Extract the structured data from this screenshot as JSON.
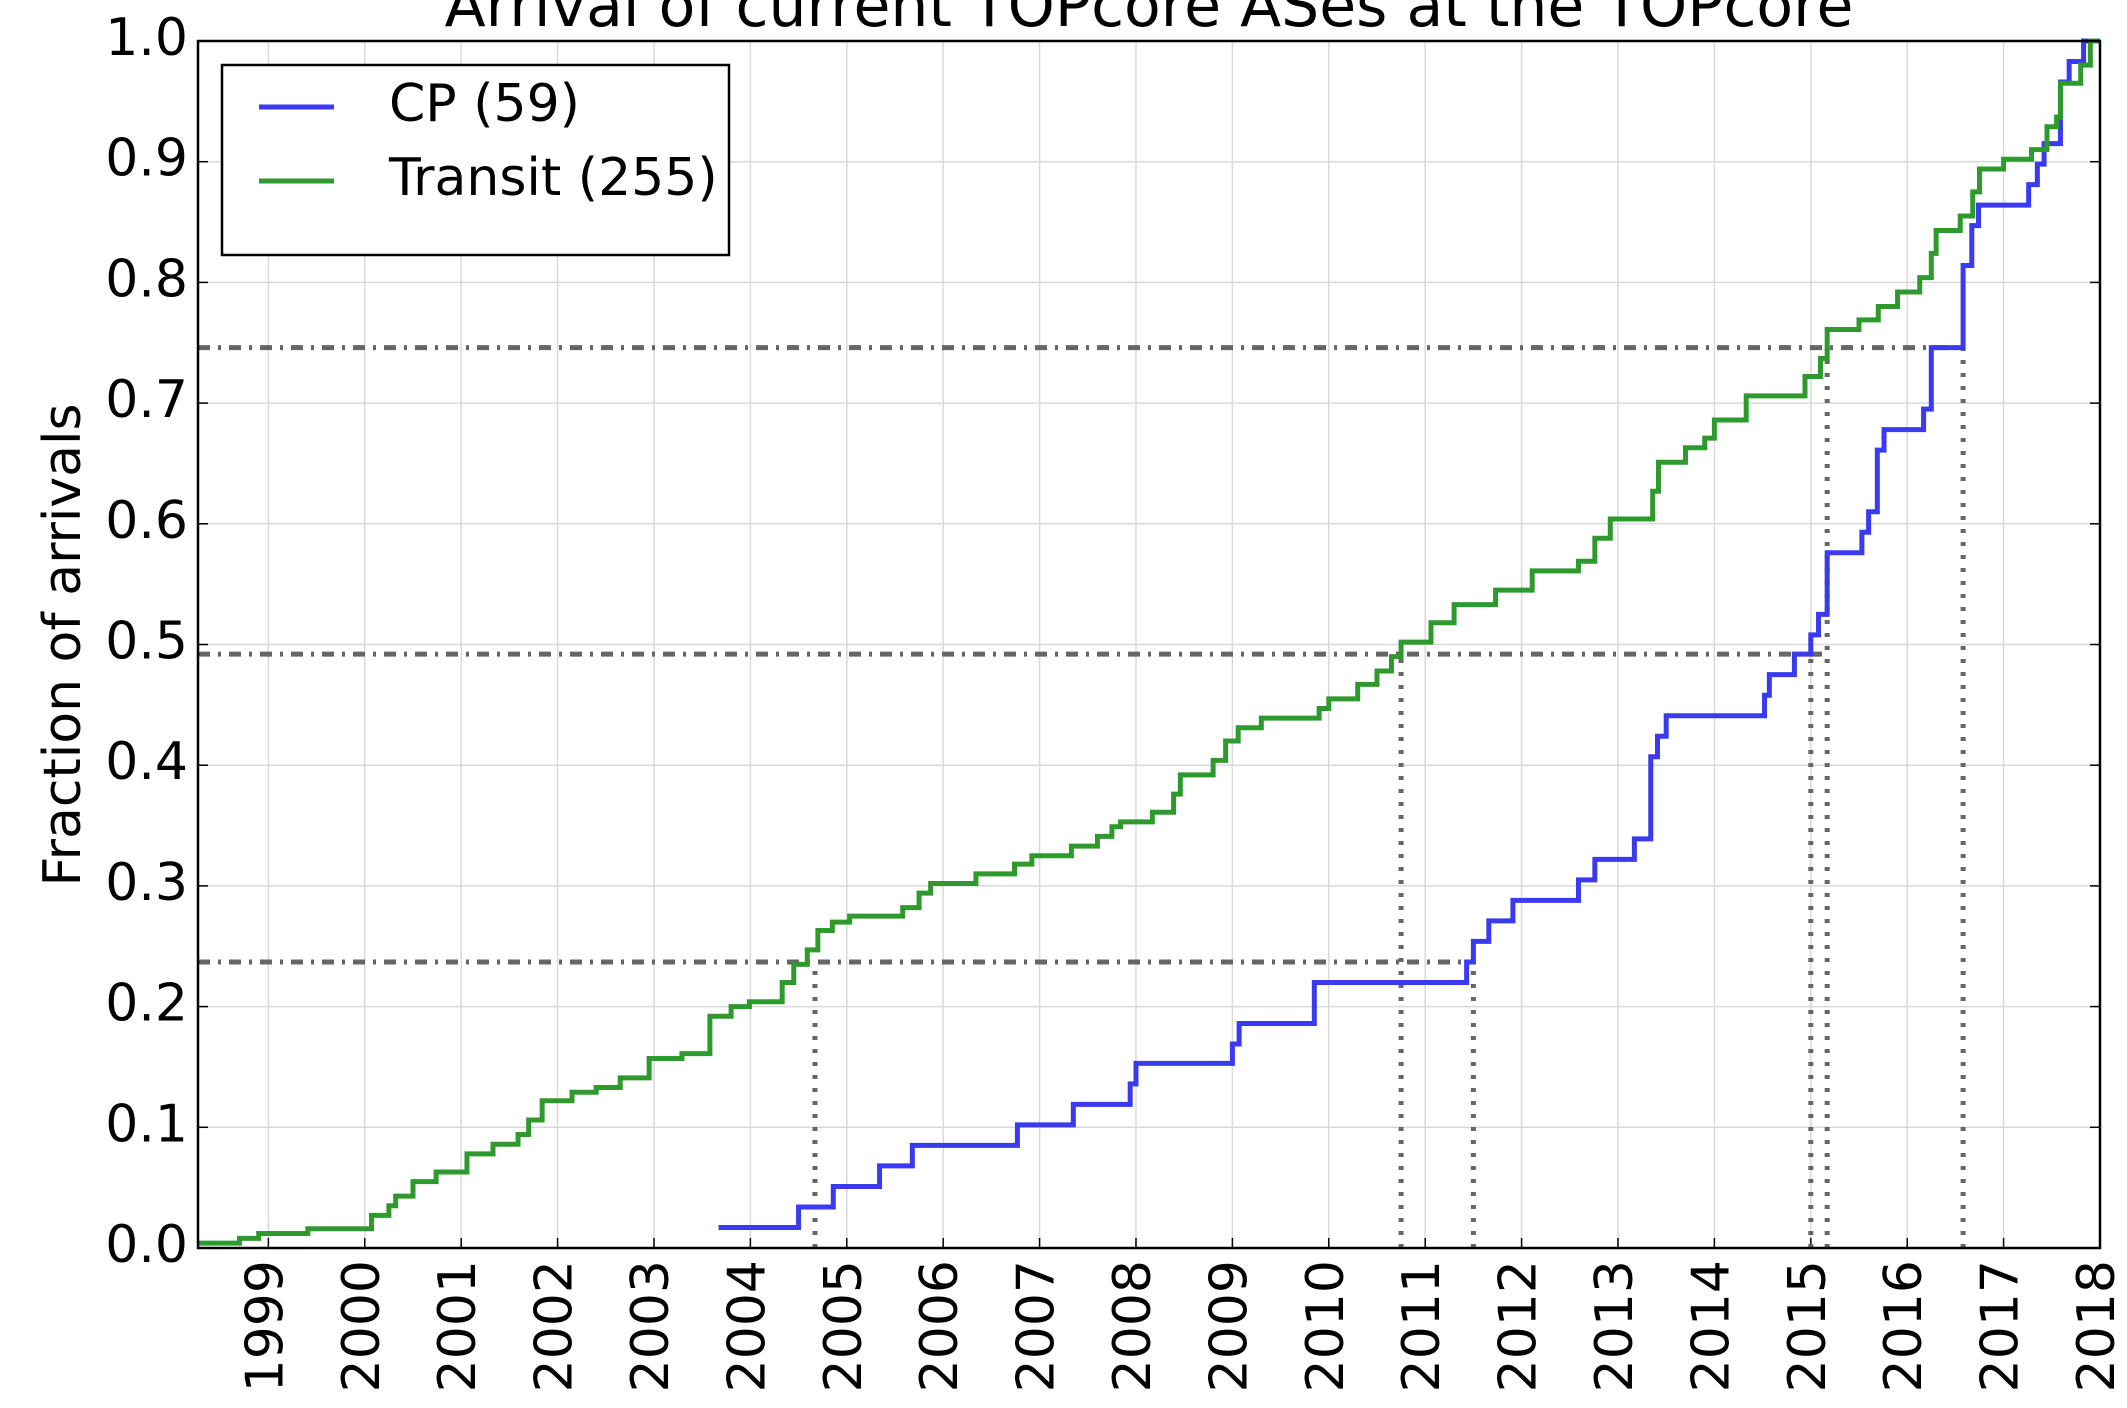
{
  "chart_data": {
    "type": "line",
    "step": "post",
    "title": "Arrival of current TOPcore ASes at the TOPcore",
    "ylabel": "Fraction of arrivals",
    "xlim": [
      1998.27,
      2018
    ],
    "ylim": [
      0,
      1
    ],
    "xticks": [
      1999,
      2000,
      2001,
      2002,
      2003,
      2004,
      2005,
      2006,
      2007,
      2008,
      2009,
      2010,
      2011,
      2012,
      2013,
      2014,
      2015,
      2016,
      2017,
      2018
    ],
    "yticks": [
      {
        "value": 0,
        "label": "0.0"
      },
      0.1,
      0.2,
      0.3,
      0.4,
      0.5,
      0.6,
      0.7,
      0.8,
      0.9,
      {
        "value": 1,
        "label": "1.0"
      }
    ],
    "grid": true,
    "legend": "upper left",
    "series": [
      {
        "name": "CP (59)",
        "color": "#3a3af0",
        "x": [
          2003.67,
          2004.5,
          2004.86,
          2005.34,
          2005.68,
          2006.77,
          2007.35,
          2007.94,
          2008.0,
          2009.0,
          2009.07,
          2009.85,
          2011.43,
          2011.5,
          2011.66,
          2011.91,
          2012.59,
          2012.76,
          2013.17,
          2013.34,
          2013.41,
          2013.5,
          2014.52,
          2014.57,
          2014.83,
          2015.0,
          2015.08,
          2015.17,
          2015.53,
          2015.6,
          2015.69,
          2015.76,
          2016.17,
          2016.25,
          2016.58,
          2016.67,
          2016.74,
          2017.26,
          2017.35,
          2017.42,
          2017.59,
          2017.68,
          2017.83
        ],
        "values": [
          0.017,
          0.034,
          0.051,
          0.068,
          0.085,
          0.102,
          0.119,
          0.136,
          0.153,
          0.169,
          0.186,
          0.22,
          0.237,
          0.254,
          0.271,
          0.288,
          0.305,
          0.322,
          0.339,
          0.407,
          0.424,
          0.441,
          0.458,
          0.475,
          0.492,
          0.508,
          0.525,
          0.576,
          0.593,
          0.61,
          0.661,
          0.678,
          0.695,
          0.746,
          0.814,
          0.847,
          0.864,
          0.881,
          0.898,
          0.915,
          0.966,
          0.983,
          1.0
        ]
      },
      {
        "name": "Transit (255)",
        "color": "#2e9a2e",
        "x": [
          1998.27,
          1998.7,
          1998.9,
          1999.41,
          2000.07,
          2000.25,
          2000.32,
          2000.5,
          2000.74,
          2001.06,
          2001.33,
          2001.59,
          2001.7,
          2001.84,
          2002.15,
          2002.4,
          2002.65,
          2002.95,
          2003.29,
          2003.58,
          2003.8,
          2003.99,
          2004.33,
          2004.45,
          2004.59,
          2004.7,
          2004.85,
          2005.03,
          2005.58,
          2005.75,
          2005.87,
          2006.34,
          2006.74,
          2006.92,
          2007.33,
          2007.6,
          2007.75,
          2007.84,
          2008.17,
          2008.39,
          2008.46,
          2008.8,
          2008.93,
          2009.06,
          2009.3,
          2009.9,
          2010.0,
          2010.3,
          2010.5,
          2010.65,
          2010.75,
          2011.06,
          2011.3,
          2011.73,
          2012.11,
          2012.59,
          2012.76,
          2012.92,
          2013.36,
          2013.42,
          2013.7,
          2013.9,
          2014.0,
          2014.33,
          2014.94,
          2015.1,
          2015.17,
          2015.5,
          2015.7,
          2015.9,
          2016.13,
          2016.25,
          2016.3,
          2016.55,
          2016.68,
          2016.75,
          2017.0,
          2017.29,
          2017.45,
          2017.55,
          2017.59,
          2017.8,
          2017.9
        ],
        "values": [
          0.004,
          0.008,
          0.012,
          0.016,
          0.027,
          0.035,
          0.043,
          0.055,
          0.063,
          0.078,
          0.086,
          0.094,
          0.106,
          0.122,
          0.129,
          0.133,
          0.141,
          0.157,
          0.161,
          0.192,
          0.2,
          0.204,
          0.22,
          0.235,
          0.247,
          0.263,
          0.27,
          0.275,
          0.282,
          0.294,
          0.302,
          0.31,
          0.318,
          0.325,
          0.333,
          0.341,
          0.349,
          0.353,
          0.361,
          0.376,
          0.392,
          0.404,
          0.42,
          0.431,
          0.439,
          0.447,
          0.455,
          0.467,
          0.478,
          0.49,
          0.502,
          0.518,
          0.533,
          0.545,
          0.561,
          0.569,
          0.588,
          0.604,
          0.627,
          0.651,
          0.663,
          0.671,
          0.686,
          0.706,
          0.722,
          0.737,
          0.761,
          0.769,
          0.78,
          0.792,
          0.804,
          0.824,
          0.843,
          0.855,
          0.875,
          0.894,
          0.902,
          0.91,
          0.929,
          0.937,
          0.965,
          0.98,
          1.0
        ]
      }
    ],
    "hlines": [
      {
        "y": 0.237,
        "x_end": 2011.5
      },
      {
        "y": 0.492,
        "x_end": 2015.17
      },
      {
        "y": 0.746,
        "x_end": 2016.58
      }
    ],
    "vlines": [
      {
        "x": 2004.67,
        "y_end": 0.237
      },
      {
        "x": 2010.75,
        "y_end": 0.492
      },
      {
        "x": 2011.5,
        "y_end": 0.237
      },
      {
        "x": 2015.0,
        "y_end": 0.492
      },
      {
        "x": 2015.17,
        "y_end": 0.746
      },
      {
        "x": 2016.58,
        "y_end": 0.746
      }
    ]
  }
}
